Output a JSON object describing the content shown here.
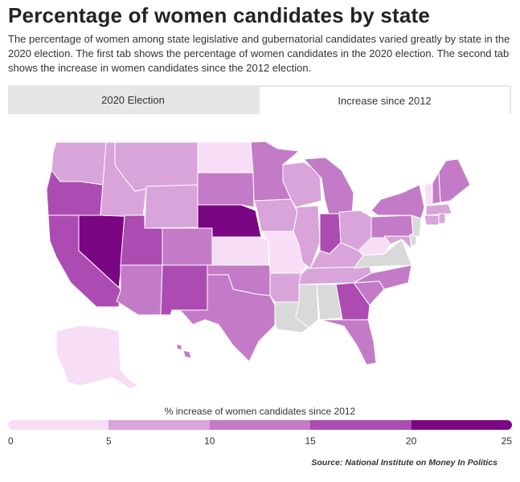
{
  "header": {
    "title": "Percentage of women candidates by state",
    "description": "The percentage of women among state legislative and gubernatorial candidates varied greatly by state in the 2020 election. The first tab shows the percentage of women candidates in the 2020 election. The second tab shows the increase in women candidates since the 2012 election."
  },
  "tabs": [
    {
      "label": "2020 Election",
      "active": false
    },
    {
      "label": "Increase since 2012",
      "active": true
    }
  ],
  "legend": {
    "title": "% increase of women candidates since 2012",
    "ticks": [
      "0",
      "5",
      "10",
      "15",
      "20",
      "25"
    ],
    "colors": [
      "#f8ddf6",
      "#d9a4da",
      "#c47bc7",
      "#ac4cb2",
      "#7a0683"
    ],
    "no_data_color": "#d9d9d9"
  },
  "source": "Source: National Institute on Money In Politics",
  "map": {
    "state_bins": {
      "WA": 2,
      "OR": 4,
      "CA": 4,
      "NV": 5,
      "ID": 2,
      "MT": 2,
      "WY": 2,
      "UT": 4,
      "AZ": 3,
      "CO": 3,
      "NM": 4,
      "ND": 1,
      "SD": 3,
      "NE": 5,
      "KS": 1,
      "OK": 3,
      "TX": 3,
      "MN": 3,
      "IA": 2,
      "MO": 1,
      "AR": 2,
      "LA": 0,
      "WI": 2,
      "IL": 2,
      "MI": 3,
      "IN": 4,
      "OH": 2,
      "KY": 2,
      "TN": 2,
      "MS": 0,
      "AL": 0,
      "GA": 4,
      "FL": 3,
      "SC": 3,
      "NC": 3,
      "VA": 0,
      "WV": 1,
      "PA": 3,
      "NY": 3,
      "VT": 1,
      "NH": 3,
      "ME": 3,
      "MA": 2,
      "CT": 2,
      "RI": 2,
      "NJ": 0,
      "DE": 0,
      "MD": 2,
      "AK": 1,
      "HI": 3
    }
  }
}
